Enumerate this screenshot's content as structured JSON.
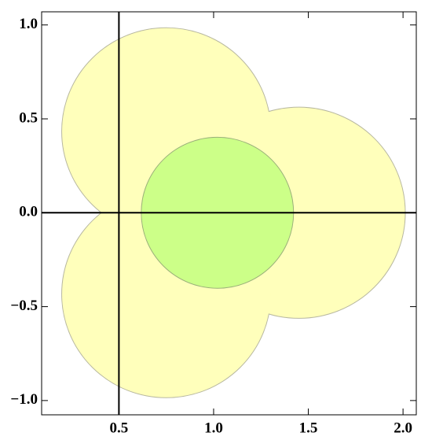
{
  "chart_data": {
    "type": "region",
    "xlim": [
      0.092,
      2.07
    ],
    "ylim": [
      -1.076,
      1.07
    ],
    "xticks": [
      {
        "value": 0.5,
        "label": "0.5"
      },
      {
        "value": 1,
        "label": "1.0"
      },
      {
        "value": 1.5,
        "label": "1.5"
      },
      {
        "value": 2,
        "label": "2.0"
      }
    ],
    "yticks": [
      {
        "value": -1,
        "label": "−1.0"
      },
      {
        "value": -0.5,
        "label": "−0.5"
      },
      {
        "value": 0,
        "label": "0.0"
      },
      {
        "value": 0.5,
        "label": "0.5"
      },
      {
        "value": 1,
        "label": "1.0"
      }
    ],
    "axes_origin": [
      0.5,
      0
    ],
    "regions": [
      {
        "color": "#ffffbb",
        "edge": "#b8b8a0",
        "circles": [
          {
            "cx": 1.45,
            "cy": 0,
            "r": 0.56
          },
          {
            "cx": 0.75,
            "cy": 0.433,
            "r": 0.55
          },
          {
            "cx": 0.75,
            "cy": -0.433,
            "r": 0.55
          }
        ]
      },
      {
        "color": "#ccff88",
        "edge": "#9ab07a",
        "circles": [
          {
            "cx": 1.02,
            "cy": 0,
            "r": 0.4
          }
        ]
      }
    ]
  }
}
